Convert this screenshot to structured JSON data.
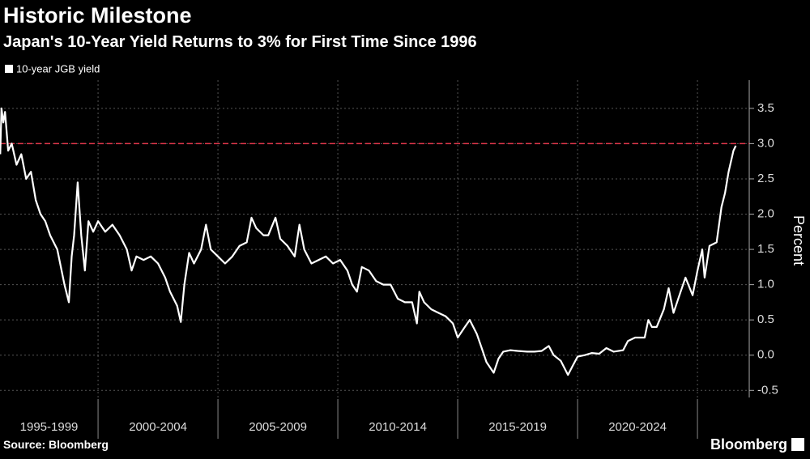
{
  "chart_data": {
    "type": "line",
    "title": "Historic Milestone",
    "subtitle": "Japan's 10-Year Yield Returns to 3% for First Time Since 1996",
    "y_label": "Percent",
    "source": "Source: Bloomberg",
    "brand": "Bloomberg",
    "legend_position": "top-left",
    "grid": true,
    "xlim": [
      1995.91,
      2027.16
    ],
    "ylim": [
      -0.6,
      3.9
    ],
    "yticks": [
      3.5,
      3.0,
      2.5,
      2.0,
      1.5,
      1.0,
      0.5,
      0.0,
      -0.5
    ],
    "ytick_labels": [
      "3.5",
      "3.0",
      "2.5",
      "2.0",
      "1.5",
      "1.0",
      "0.5",
      "0.0",
      "-0.5"
    ],
    "xgrid": [
      2000,
      2005,
      2010,
      2015,
      2020,
      2025
    ],
    "x_periods": [
      {
        "label": "1995-1999",
        "from": 1995,
        "to": 2000
      },
      {
        "label": "2000-2004",
        "from": 2000,
        "to": 2005
      },
      {
        "label": "2005-2009",
        "from": 2005,
        "to": 2010
      },
      {
        "label": "2010-2014",
        "from": 2010,
        "to": 2015
      },
      {
        "label": "2015-2019",
        "from": 2015,
        "to": 2020
      },
      {
        "label": "2020-2024",
        "from": 2020,
        "to": 2025
      }
    ],
    "reference_line": {
      "value": 3.0,
      "color": "#e0364a"
    },
    "series": [
      {
        "name": "10-year JGB yield",
        "color": "#ffffff",
        "x": [
          1995.92,
          1995.97,
          1996.05,
          1996.12,
          1996.25,
          1996.4,
          1996.6,
          1996.8,
          1997.0,
          1997.2,
          1997.4,
          1997.6,
          1997.8,
          1998.0,
          1998.3,
          1998.6,
          1998.78,
          1998.9,
          1999.0,
          1999.15,
          1999.3,
          1999.45,
          1999.6,
          1999.8,
          2000.0,
          2000.3,
          2000.6,
          2000.9,
          2001.2,
          2001.4,
          2001.6,
          2001.9,
          2002.2,
          2002.5,
          2002.8,
          2003.0,
          2003.3,
          2003.45,
          2003.6,
          2003.8,
          2004.0,
          2004.3,
          2004.5,
          2004.7,
          2005.0,
          2005.3,
          2005.6,
          2005.9,
          2006.2,
          2006.4,
          2006.6,
          2006.9,
          2007.1,
          2007.4,
          2007.6,
          2007.9,
          2008.2,
          2008.4,
          2008.6,
          2008.9,
          2009.2,
          2009.5,
          2009.8,
          2010.1,
          2010.4,
          2010.6,
          2010.8,
          2011.0,
          2011.3,
          2011.6,
          2011.9,
          2012.2,
          2012.5,
          2012.8,
          2013.1,
          2013.3,
          2013.4,
          2013.6,
          2013.9,
          2014.2,
          2014.5,
          2014.8,
          2015.0,
          2015.3,
          2015.5,
          2015.8,
          2016.0,
          2016.2,
          2016.5,
          2016.7,
          2016.9,
          2017.2,
          2017.5,
          2017.9,
          2018.2,
          2018.5,
          2018.8,
          2019.0,
          2019.3,
          2019.6,
          2019.8,
          2020.0,
          2020.3,
          2020.6,
          2020.9,
          2021.2,
          2021.5,
          2021.9,
          2022.1,
          2022.4,
          2022.8,
          2022.95,
          2023.1,
          2023.3,
          2023.6,
          2023.8,
          2024.0,
          2024.3,
          2024.5,
          2024.8,
          2025.0,
          2025.2,
          2025.3,
          2025.5,
          2025.8,
          2026.0,
          2026.15,
          2026.3,
          2026.5,
          2026.6
        ],
        "values": [
          2.85,
          3.5,
          3.3,
          3.45,
          2.9,
          3.0,
          2.7,
          2.85,
          2.5,
          2.6,
          2.2,
          2.0,
          1.9,
          1.7,
          1.5,
          1.0,
          0.75,
          1.4,
          1.7,
          2.45,
          1.7,
          1.2,
          1.9,
          1.75,
          1.9,
          1.75,
          1.85,
          1.7,
          1.5,
          1.2,
          1.4,
          1.35,
          1.4,
          1.3,
          1.1,
          0.9,
          0.7,
          0.47,
          1.0,
          1.45,
          1.3,
          1.5,
          1.85,
          1.5,
          1.4,
          1.3,
          1.4,
          1.55,
          1.6,
          1.95,
          1.8,
          1.7,
          1.7,
          1.95,
          1.65,
          1.55,
          1.4,
          1.85,
          1.5,
          1.3,
          1.35,
          1.4,
          1.3,
          1.35,
          1.2,
          1.0,
          0.9,
          1.25,
          1.2,
          1.05,
          1.0,
          1.0,
          0.8,
          0.75,
          0.75,
          0.45,
          0.9,
          0.75,
          0.65,
          0.6,
          0.55,
          0.45,
          0.25,
          0.4,
          0.5,
          0.3,
          0.1,
          -0.1,
          -0.25,
          -0.05,
          0.05,
          0.07,
          0.06,
          0.05,
          0.05,
          0.06,
          0.13,
          0.0,
          -0.08,
          -0.28,
          -0.15,
          -0.02,
          0.0,
          0.03,
          0.02,
          0.1,
          0.05,
          0.07,
          0.2,
          0.25,
          0.25,
          0.5,
          0.4,
          0.4,
          0.65,
          0.95,
          0.6,
          0.9,
          1.1,
          0.85,
          1.2,
          1.5,
          1.1,
          1.55,
          1.6,
          2.1,
          2.3,
          2.6,
          2.9,
          2.97
        ]
      }
    ]
  }
}
